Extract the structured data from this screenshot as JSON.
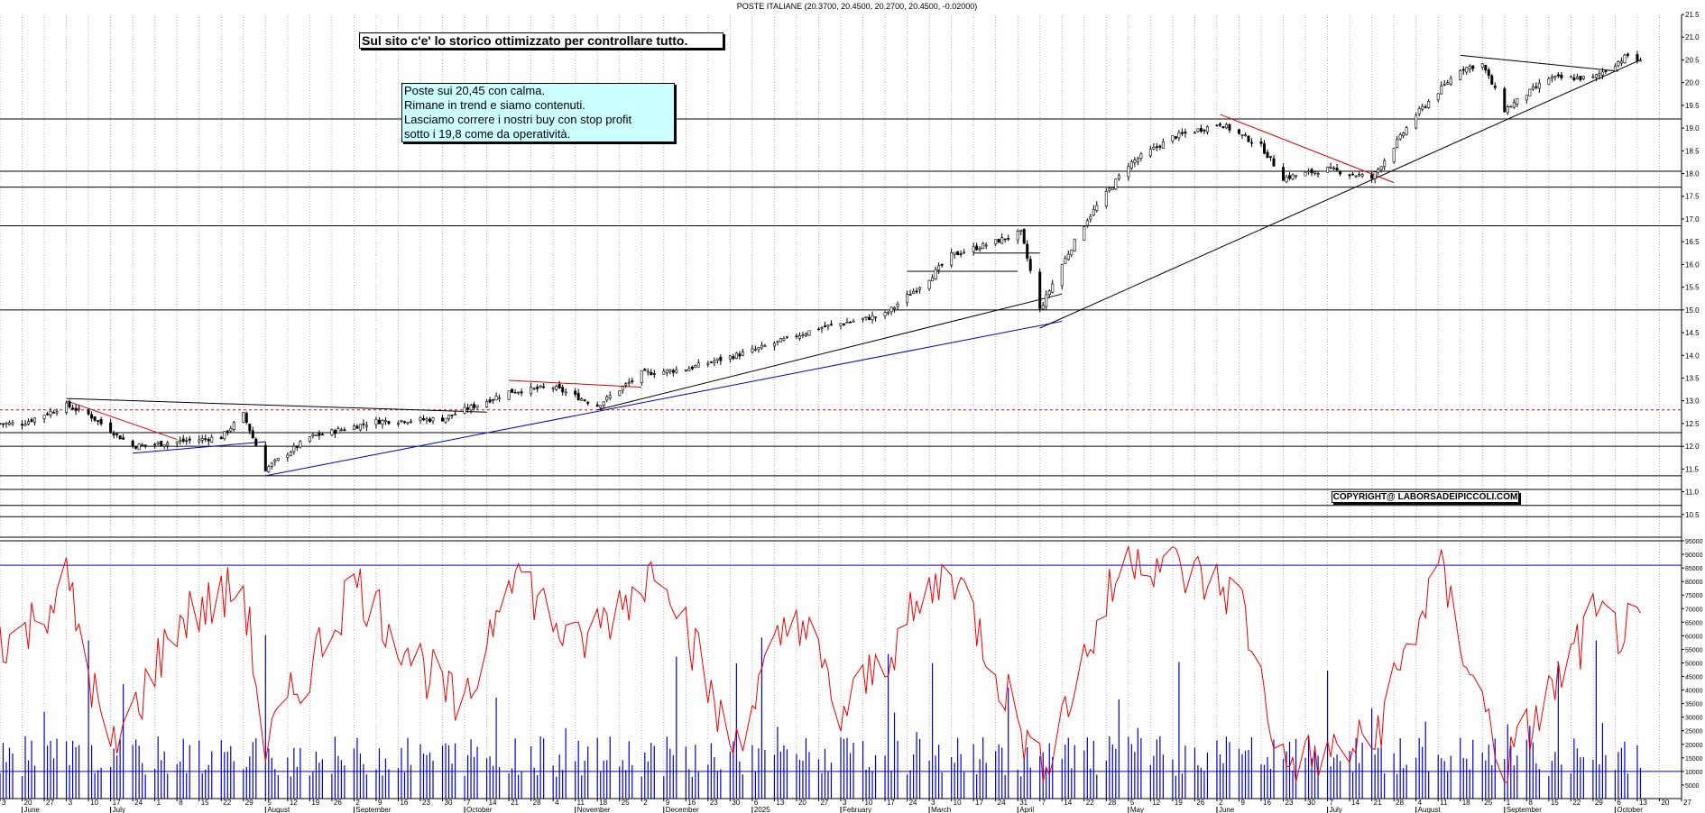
{
  "chart_data": {
    "type": "candlestick",
    "title": "POSTE ITALIANE (20.3700, 20.4500, 20.2700, 20.4500, -0.02000)",
    "annotations": {
      "title_box": "Sul sito c'e' lo storico ottimizzato per controllare tutto.",
      "note_lines": [
        "Poste sui 20,45 con calma.",
        "Rimane in trend e siamo contenuti.",
        "Lasciamo correre i nostri  buy con stop profit",
        "sotto i 19,8 come da operatività."
      ],
      "copyright": "COPYRIGHT@ LABORSADEIPICCOLI.COM"
    },
    "price_panel": {
      "ylim": [
        10.0,
        21.5
      ],
      "yticks": [
        "21.5",
        "21.0",
        "20.5",
        "20.0",
        "19.5",
        "19.0",
        "18.5",
        "18.0",
        "17.5",
        "17.0",
        "16.5",
        "16.0",
        "15.5",
        "15.0",
        "14.5",
        "14.0",
        "13.5",
        "13.0",
        "12.5",
        "12.0",
        "11.5",
        "11.0",
        "10.5"
      ],
      "horizontal_levels": [
        19.2,
        18.05,
        17.7,
        16.85,
        15.0,
        12.3,
        12.0,
        11.35,
        11.05,
        10.7,
        10.45
      ],
      "dashed_level": 12.8,
      "key_points": [
        {
          "x": "2024-05-20",
          "y": 12.5
        },
        {
          "x": "2024-06-03",
          "y": 12.9
        },
        {
          "x": "2024-06-10",
          "y": 12.7
        },
        {
          "x": "2024-06-24",
          "y": 12.0
        },
        {
          "x": "2024-07-22",
          "y": 12.2
        },
        {
          "x": "2024-07-29",
          "y": 12.7
        },
        {
          "x": "2024-08-05",
          "y": 11.5
        },
        {
          "x": "2024-08-19",
          "y": 12.2
        },
        {
          "x": "2024-09-09",
          "y": 12.55
        },
        {
          "x": "2024-09-30",
          "y": 12.6
        },
        {
          "x": "2024-10-21",
          "y": 13.2
        },
        {
          "x": "2024-11-04",
          "y": 13.3
        },
        {
          "x": "2024-11-18",
          "y": 12.9
        },
        {
          "x": "2024-12-02",
          "y": 13.6
        },
        {
          "x": "2024-12-16",
          "y": 13.7
        },
        {
          "x": "2025-01-06",
          "y": 14.1
        },
        {
          "x": "2025-01-27",
          "y": 14.6
        },
        {
          "x": "2025-02-17",
          "y": 14.9
        },
        {
          "x": "2025-03-03",
          "y": 15.7
        },
        {
          "x": "2025-03-10",
          "y": 16.2
        },
        {
          "x": "2025-03-24",
          "y": 16.5
        },
        {
          "x": "2025-04-01",
          "y": 16.7
        },
        {
          "x": "2025-04-07",
          "y": 15.0
        },
        {
          "x": "2025-04-14",
          "y": 16.0
        },
        {
          "x": "2025-04-22",
          "y": 17.0
        },
        {
          "x": "2025-05-05",
          "y": 18.2
        },
        {
          "x": "2025-05-19",
          "y": 18.8
        },
        {
          "x": "2025-06-03",
          "y": 19.1
        },
        {
          "x": "2025-06-16",
          "y": 18.6
        },
        {
          "x": "2025-06-23",
          "y": 17.9
        },
        {
          "x": "2025-07-07",
          "y": 18.1
        },
        {
          "x": "2025-07-21",
          "y": 17.9
        },
        {
          "x": "2025-08-04",
          "y": 19.3
        },
        {
          "x": "2025-08-18",
          "y": 20.3
        },
        {
          "x": "2025-08-25",
          "y": 20.4
        },
        {
          "x": "2025-09-01",
          "y": 19.4
        },
        {
          "x": "2025-09-15",
          "y": 20.1
        },
        {
          "x": "2025-09-29",
          "y": 20.1
        },
        {
          "x": "2025-10-10",
          "y": 20.6
        },
        {
          "x": "2025-10-14",
          "y": 20.45
        }
      ]
    },
    "volume_panel": {
      "ylim": [
        0,
        95000
      ],
      "yticks": [
        "95000",
        "90000",
        "85000",
        "80000",
        "75000",
        "70000",
        "65000",
        "60000",
        "55000",
        "50000",
        "45000",
        "40000",
        "35000",
        "30000",
        "25000",
        "20000",
        "15000",
        "10000",
        "5000"
      ],
      "upper_level": 86000,
      "lower_level": 10000,
      "oscillator_key_points": [
        {
          "x": "2024-05-20",
          "y": 60000
        },
        {
          "x": "2024-06-03",
          "y": 80000
        },
        {
          "x": "2024-06-17",
          "y": 15000
        },
        {
          "x": "2024-07-08",
          "y": 65000
        },
        {
          "x": "2024-07-29",
          "y": 78000
        },
        {
          "x": "2024-08-05",
          "y": 18000
        },
        {
          "x": "2024-09-02",
          "y": 80000
        },
        {
          "x": "2024-10-07",
          "y": 30000
        },
        {
          "x": "2024-10-21",
          "y": 88000
        },
        {
          "x": "2024-11-11",
          "y": 55000
        },
        {
          "x": "2024-12-09",
          "y": 88000
        },
        {
          "x": "2024-12-30",
          "y": 18000
        },
        {
          "x": "2025-01-20",
          "y": 70000
        },
        {
          "x": "2025-02-03",
          "y": 30000
        },
        {
          "x": "2025-03-10",
          "y": 86000
        },
        {
          "x": "2025-04-07",
          "y": 10000
        },
        {
          "x": "2025-05-05",
          "y": 92000
        },
        {
          "x": "2025-06-09",
          "y": 75000
        },
        {
          "x": "2025-06-23",
          "y": 12000
        },
        {
          "x": "2025-07-21",
          "y": 20000
        },
        {
          "x": "2025-08-11",
          "y": 85000
        },
        {
          "x": "2025-09-01",
          "y": 10000
        },
        {
          "x": "2025-09-29",
          "y": 65000
        },
        {
          "x": "2025-10-14",
          "y": 60000
        }
      ]
    },
    "x_axis": {
      "range": [
        "2024-05-13",
        "2025-10-27"
      ],
      "day_ticks": [
        "3",
        "20",
        "27",
        "3",
        "10",
        "17",
        "24",
        "1",
        "8",
        "15",
        "22",
        "29",
        "5",
        "12",
        "19",
        "26",
        "2",
        "9",
        "16",
        "23",
        "30",
        "7",
        "14",
        "21",
        "28",
        "4",
        "11",
        "18",
        "25",
        "2",
        "9",
        "16",
        "23",
        "30",
        "6",
        "13",
        "20",
        "27",
        "3",
        "10",
        "17",
        "24",
        "3",
        "10",
        "17",
        "24",
        "31",
        "7",
        "14",
        "22",
        "28",
        "5",
        "12",
        "19",
        "26",
        "2",
        "9",
        "16",
        "23",
        "30",
        "7",
        "14",
        "21",
        "28",
        "4",
        "11",
        "18",
        "25",
        "1",
        "8",
        "15",
        "22",
        "29",
        "6",
        "13",
        "20",
        "27"
      ],
      "month_labels": [
        "June",
        "July",
        "August",
        "September",
        "October",
        "November",
        "December",
        "2025",
        "February",
        "March",
        "April",
        "May",
        "June",
        "July",
        "August",
        "September",
        "October"
      ],
      "grid": true
    }
  },
  "colors": {
    "candle": "#000000",
    "trendline_black": "#000000",
    "trendline_blue": "#0000cc",
    "trendline_red": "#dd0000",
    "dashed_level": "#dd0000",
    "volume_bars": "#0000cc",
    "oscillator": "#ee0000",
    "level_lines_volume": "#0000cc",
    "grid": "#b0b0b0",
    "note_background": "#ccffff"
  }
}
